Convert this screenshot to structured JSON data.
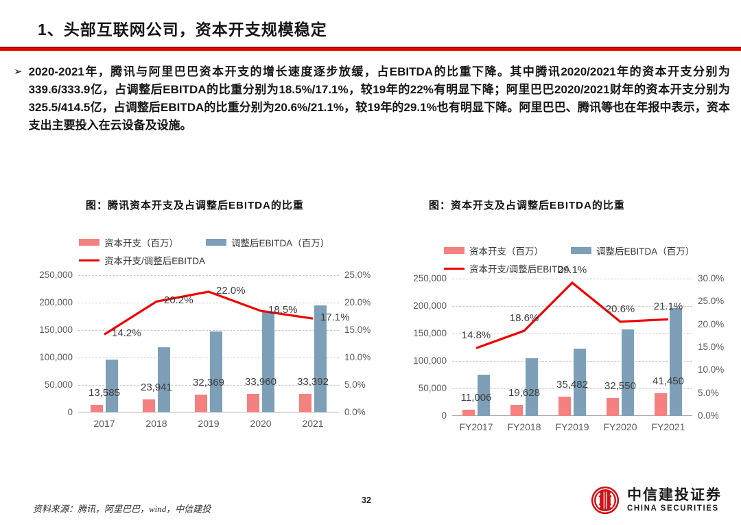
{
  "slide": {
    "title": "1、头部互联网公司，资本开支规模稳定",
    "bullet_char": "➢",
    "paragraph": "2020-2021年，腾讯与阿里巴巴资本开支的增长速度逐步放缓，占EBITDA的比重下降。其中腾讯2020/2021年的资本开支分别为339.6/333.9亿，占调整后EBITDA的比重分别为18.5%/17.1%，较19年的22%有明显下降；阿里巴巴2020/2021财年的资本开支分别为325.5/414.5亿，占调整后EBITDA的比重分别为20.6%/21.1%，较19年的29.1%也有明显下降。阿里巴巴、腾讯等也在年报中表示，资本支出主要投入在云设备及设施。",
    "page_number": "32",
    "source_note": "资料来源：腾讯，阿里巴巴，wind，中信建投",
    "logo": {
      "cn": "中信建投证券",
      "en": "CHINA SECURITIES"
    }
  },
  "colors": {
    "accent_red": "#e10600",
    "capex_pink": "#f4807f",
    "ebitda_blue": "#7d9fb7",
    "line_red": "#ee0000"
  },
  "chart_data": [
    {
      "type": "bar",
      "subtype": "bar+line combo, dual axis",
      "title": "图：腾讯资本开支及占调整后EBITDA的比重",
      "categories": [
        "2017",
        "2018",
        "2019",
        "2020",
        "2021"
      ],
      "series": [
        {
          "name": "资本开支（百万）",
          "kind": "bar",
          "values": [
            13585,
            23941,
            32369,
            33960,
            33392
          ],
          "labels": [
            "13,585",
            "23,941",
            "32,369",
            "33,960",
            "33,392"
          ]
        },
        {
          "name": "调整后EBITDA（百万）",
          "kind": "bar",
          "values_estimated": true,
          "values": [
            95700,
            118500,
            147100,
            183600,
            195300
          ]
        },
        {
          "name": "资本开支/调整后EBITDA",
          "kind": "line",
          "values_pct": [
            14.2,
            20.2,
            22.0,
            18.5,
            17.1
          ],
          "labels": [
            "14.2%",
            "20.2%",
            "22.0%",
            "18.5%",
            "17.1%"
          ]
        }
      ],
      "left_axis": {
        "min": 0,
        "max": 250000,
        "step": 50000,
        "tick_labels": [
          "250,000",
          "200,000",
          "150,000",
          "100,000",
          "50,000",
          "0"
        ]
      },
      "right_axis": {
        "min": 0,
        "max": 25,
        "step": 5,
        "tick_labels": [
          "25.0%",
          "20.0%",
          "15.0%",
          "10.0%",
          "5.0%",
          "0.0%"
        ]
      },
      "grid": "horizontal dashed",
      "legend_position": "top-left",
      "line_label_position": "right"
    },
    {
      "type": "bar",
      "subtype": "bar+line combo, dual axis",
      "title": "图：资本开支及占调整后EBITDA的比重",
      "categories": [
        "FY2017",
        "FY2018",
        "FY2019",
        "FY2020",
        "FY2021"
      ],
      "series": [
        {
          "name": "资本开支（百万）",
          "kind": "bar",
          "values": [
            11006,
            19628,
            35482,
            32550,
            41450
          ],
          "labels": [
            "11,006",
            "19,628",
            "35,482",
            "32,550",
            "41,450"
          ]
        },
        {
          "name": "调整后EBITDA（百万）",
          "kind": "bar",
          "values_estimated": true,
          "values": [
            74400,
            105500,
            121900,
            158000,
            196400
          ]
        },
        {
          "name": "资本开支/调整后EBITDA",
          "kind": "line",
          "values_pct": [
            14.8,
            18.6,
            29.1,
            20.6,
            21.1
          ],
          "labels": [
            "14.8%",
            "18.6%",
            "29.1%",
            "20.6%",
            "21.1%"
          ]
        }
      ],
      "left_axis": {
        "min": 0,
        "max": 250000,
        "step": 50000,
        "tick_labels": [
          "250,000",
          "200,000",
          "150,000",
          "100,000",
          "50,000",
          "0"
        ]
      },
      "right_axis": {
        "min": 0,
        "max": 30,
        "step": 5,
        "tick_labels": [
          "30.0%",
          "25.0%",
          "20.0%",
          "15.0%",
          "10.0%",
          "5.0%",
          "0.0%"
        ]
      },
      "grid": "horizontal dashed",
      "legend_position": "top-left",
      "line_label_position": "above"
    }
  ]
}
